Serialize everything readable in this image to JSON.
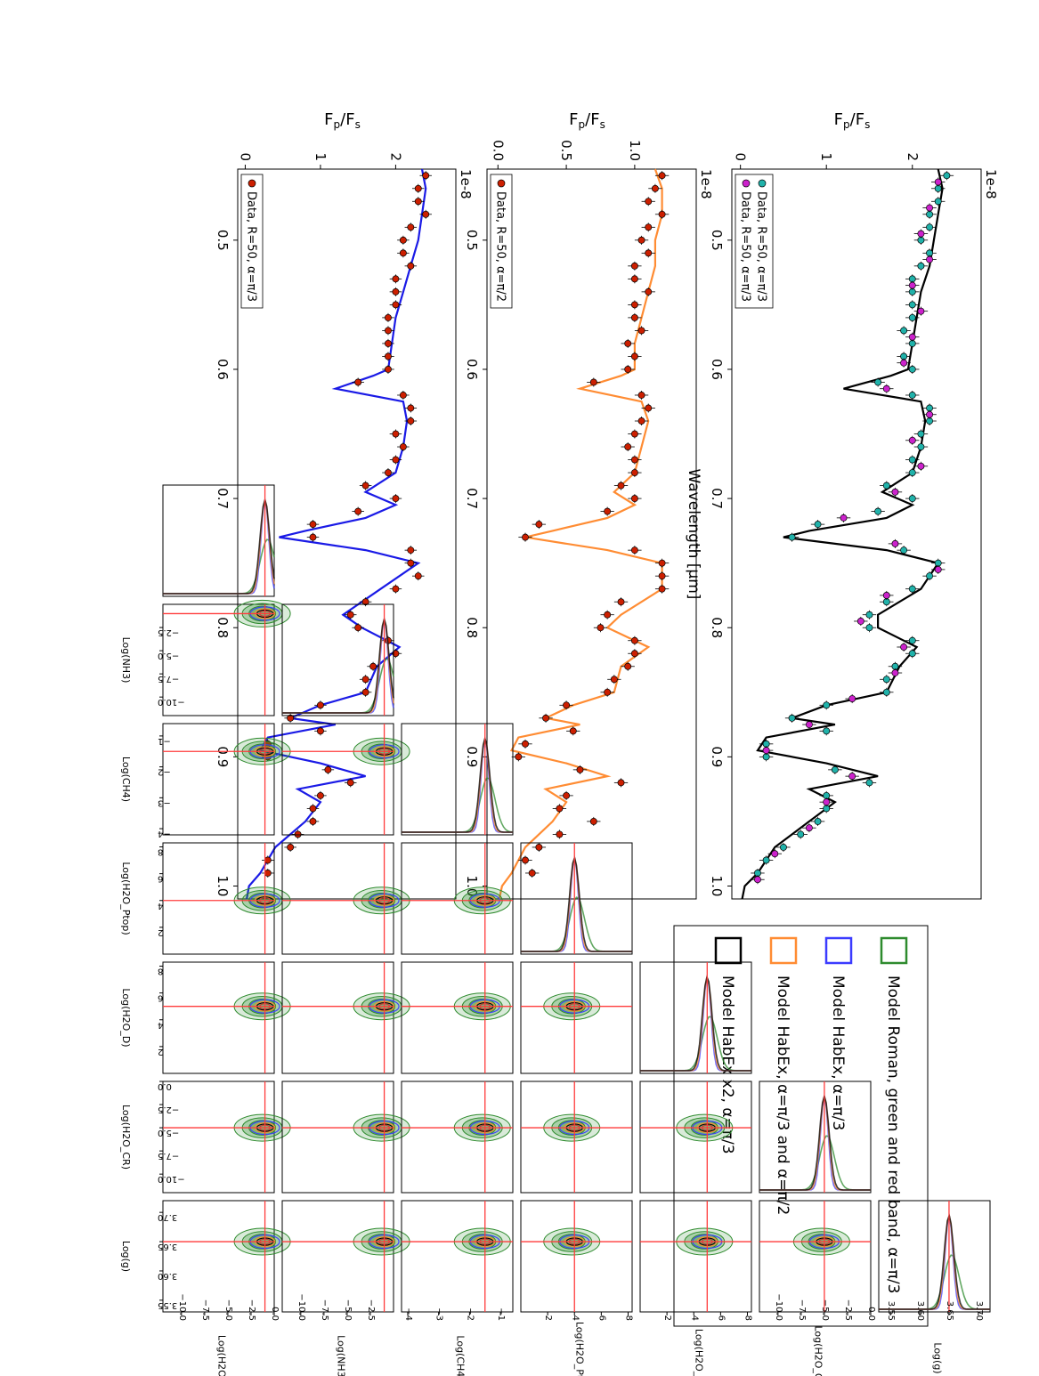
{
  "chart_data": [
    {
      "type": "line",
      "panel": "spectrum-top",
      "offset_text": "1e-8",
      "ylabel": "F_p/F_s",
      "ylim": [
        -0.1,
        2.8
      ],
      "xlim": [
        0.445,
        1.01
      ],
      "xticks": [
        "0.5",
        "0.6",
        "0.7",
        "0.8",
        "0.9",
        "1.0"
      ],
      "yticks": [
        "0",
        "1",
        "2"
      ],
      "legend": [
        {
          "label": "Data, R=50, α=π/3",
          "color": "#cc1f00"
        }
      ],
      "model": {
        "color": "#1a1ae6",
        "x": [
          0.445,
          0.46,
          0.48,
          0.5,
          0.52,
          0.54,
          0.56,
          0.58,
          0.6,
          0.605,
          0.615,
          0.625,
          0.64,
          0.66,
          0.68,
          0.695,
          0.705,
          0.715,
          0.725,
          0.73,
          0.74,
          0.75,
          0.77,
          0.79,
          0.8,
          0.815,
          0.83,
          0.85,
          0.86,
          0.87,
          0.875,
          0.885,
          0.895,
          0.905,
          0.915,
          0.925,
          0.935,
          0.95,
          0.97,
          0.99,
          1.0,
          1.01
        ],
        "y": [
          2.35,
          2.4,
          2.35,
          2.3,
          2.2,
          2.1,
          2.0,
          1.95,
          1.9,
          1.7,
          1.2,
          2.1,
          2.15,
          2.1,
          2.0,
          1.6,
          2.0,
          1.6,
          0.8,
          0.45,
          1.6,
          2.3,
          1.8,
          1.3,
          1.55,
          2.05,
          1.75,
          1.6,
          1.0,
          0.6,
          1.2,
          0.3,
          0.2,
          1.0,
          1.6,
          0.7,
          1.0,
          0.8,
          0.4,
          0.2,
          0.05,
          0.02
        ]
      },
      "data": {
        "color": "#cc1f00",
        "yerr": 0.08,
        "x": [
          0.45,
          0.46,
          0.47,
          0.48,
          0.49,
          0.5,
          0.51,
          0.52,
          0.53,
          0.54,
          0.55,
          0.56,
          0.57,
          0.58,
          0.59,
          0.6,
          0.61,
          0.62,
          0.63,
          0.64,
          0.65,
          0.66,
          0.67,
          0.68,
          0.69,
          0.7,
          0.71,
          0.72,
          0.73,
          0.74,
          0.75,
          0.76,
          0.77,
          0.78,
          0.79,
          0.8,
          0.81,
          0.82,
          0.83,
          0.84,
          0.85,
          0.86,
          0.87,
          0.88,
          0.89,
          0.9,
          0.91,
          0.92,
          0.93,
          0.94,
          0.95,
          0.96,
          0.97,
          0.98,
          0.99
        ],
        "y": [
          2.4,
          2.3,
          2.3,
          2.4,
          2.2,
          2.1,
          2.1,
          2.2,
          2.0,
          2.0,
          2.0,
          1.9,
          1.9,
          1.9,
          1.9,
          1.9,
          1.5,
          2.1,
          2.2,
          2.2,
          2.0,
          2.1,
          2.0,
          1.9,
          1.6,
          2.0,
          1.5,
          0.9,
          0.9,
          2.2,
          2.2,
          2.3,
          2.0,
          1.6,
          1.4,
          1.5,
          1.9,
          2.0,
          1.7,
          1.6,
          1.6,
          1.0,
          0.6,
          1.0,
          0.3,
          0.3,
          1.1,
          1.4,
          1.0,
          0.9,
          0.9,
          0.7,
          0.6,
          0.3,
          0.3
        ]
      }
    },
    {
      "type": "line",
      "panel": "spectrum-middle",
      "offset_text": "1e-8",
      "ylabel": "F_p/F_s",
      "ylim": [
        -0.08,
        1.45
      ],
      "xlim": [
        0.445,
        1.01
      ],
      "xticks": [
        "0.5",
        "0.6",
        "0.7",
        "0.8",
        "0.9",
        "1.0"
      ],
      "yticks": [
        "0.0",
        "0.5",
        "1.0"
      ],
      "legend": [
        {
          "label": "Data, R=50, α=π/2",
          "color": "#cc1f00"
        }
      ],
      "model": {
        "color": "#ff8c33",
        "x": [
          0.445,
          0.46,
          0.48,
          0.5,
          0.52,
          0.54,
          0.56,
          0.58,
          0.6,
          0.605,
          0.615,
          0.625,
          0.64,
          0.66,
          0.68,
          0.695,
          0.705,
          0.715,
          0.725,
          0.73,
          0.74,
          0.75,
          0.77,
          0.79,
          0.8,
          0.815,
          0.83,
          0.85,
          0.86,
          0.87,
          0.875,
          0.885,
          0.895,
          0.905,
          0.915,
          0.925,
          0.935,
          0.95,
          0.97,
          0.99,
          1.0,
          1.01
        ],
        "y": [
          1.15,
          1.2,
          1.2,
          1.15,
          1.15,
          1.1,
          1.05,
          1.0,
          1.0,
          0.9,
          0.6,
          1.05,
          1.1,
          1.05,
          1.0,
          0.85,
          1.0,
          0.8,
          0.4,
          0.2,
          0.8,
          1.2,
          1.2,
          0.9,
          0.8,
          1.1,
          0.9,
          0.85,
          0.55,
          0.35,
          0.6,
          0.15,
          0.1,
          0.5,
          0.8,
          0.35,
          0.5,
          0.4,
          0.2,
          0.1,
          0.03,
          0.01
        ]
      },
      "data": {
        "color": "#cc1f00",
        "yerr": 0.05,
        "x": [
          0.45,
          0.46,
          0.47,
          0.48,
          0.49,
          0.5,
          0.51,
          0.52,
          0.53,
          0.54,
          0.55,
          0.56,
          0.57,
          0.58,
          0.59,
          0.6,
          0.61,
          0.62,
          0.63,
          0.64,
          0.65,
          0.66,
          0.67,
          0.68,
          0.69,
          0.7,
          0.71,
          0.72,
          0.73,
          0.74,
          0.75,
          0.76,
          0.77,
          0.78,
          0.79,
          0.8,
          0.81,
          0.82,
          0.83,
          0.84,
          0.85,
          0.86,
          0.87,
          0.88,
          0.89,
          0.9,
          0.91,
          0.92,
          0.93,
          0.94,
          0.95,
          0.96,
          0.97,
          0.98,
          0.99
        ],
        "y": [
          1.2,
          1.15,
          1.1,
          1.2,
          1.1,
          1.05,
          1.1,
          1.0,
          1.0,
          1.1,
          1.0,
          1.0,
          1.05,
          0.95,
          1.0,
          0.95,
          0.7,
          1.05,
          1.1,
          1.05,
          1.0,
          0.95,
          1.0,
          1.0,
          0.9,
          1.0,
          0.8,
          0.3,
          0.2,
          1.0,
          1.2,
          1.2,
          1.2,
          0.9,
          0.8,
          0.75,
          1.0,
          1.0,
          0.95,
          0.85,
          0.8,
          0.5,
          0.35,
          0.55,
          0.2,
          0.15,
          0.6,
          0.9,
          0.5,
          0.45,
          0.7,
          0.45,
          0.3,
          0.2,
          0.25
        ]
      }
    },
    {
      "type": "line",
      "panel": "spectrum-bottom",
      "offset_text": "1e-8",
      "ylabel": "F_p/F_s",
      "xlabel": "Wavelength [μm]",
      "ylim": [
        -0.1,
        2.8
      ],
      "xlim": [
        0.445,
        1.01
      ],
      "xticks": [
        "0.5",
        "0.6",
        "0.7",
        "0.8",
        "0.9",
        "1.0"
      ],
      "yticks": [
        "0",
        "1",
        "2"
      ],
      "legend": [
        {
          "label": "Data, R=50, α=π/3",
          "color": "#20b2aa"
        },
        {
          "label": "Data, R=50, α=π/3",
          "color": "#cc22cc"
        }
      ],
      "model": {
        "color": "#000000",
        "x": [
          0.445,
          0.46,
          0.48,
          0.5,
          0.52,
          0.54,
          0.56,
          0.58,
          0.6,
          0.605,
          0.615,
          0.625,
          0.64,
          0.66,
          0.68,
          0.695,
          0.705,
          0.715,
          0.725,
          0.73,
          0.74,
          0.75,
          0.77,
          0.79,
          0.8,
          0.815,
          0.83,
          0.85,
          0.86,
          0.87,
          0.875,
          0.885,
          0.895,
          0.905,
          0.915,
          0.925,
          0.935,
          0.95,
          0.97,
          0.99,
          1.0,
          1.01
        ],
        "y": [
          2.3,
          2.35,
          2.3,
          2.25,
          2.2,
          2.1,
          2.05,
          2.0,
          1.95,
          1.75,
          1.2,
          2.1,
          2.15,
          2.1,
          2.0,
          1.65,
          2.0,
          1.7,
          0.8,
          0.5,
          1.7,
          2.3,
          2.1,
          1.6,
          1.6,
          2.05,
          1.85,
          1.7,
          1.0,
          0.6,
          1.1,
          0.3,
          0.2,
          1.0,
          1.6,
          0.8,
          1.1,
          0.8,
          0.4,
          0.2,
          0.05,
          0.02
        ]
      },
      "data": {
        "color": "#20b2aa",
        "yerr": 0.08,
        "x": [
          0.45,
          0.46,
          0.47,
          0.48,
          0.49,
          0.5,
          0.51,
          0.52,
          0.53,
          0.54,
          0.55,
          0.56,
          0.57,
          0.58,
          0.59,
          0.6,
          0.61,
          0.62,
          0.63,
          0.64,
          0.65,
          0.66,
          0.67,
          0.68,
          0.69,
          0.7,
          0.71,
          0.72,
          0.73,
          0.74,
          0.75,
          0.76,
          0.77,
          0.78,
          0.79,
          0.8,
          0.81,
          0.82,
          0.83,
          0.84,
          0.85,
          0.86,
          0.87,
          0.88,
          0.89,
          0.9,
          0.91,
          0.92,
          0.93,
          0.94,
          0.95,
          0.96,
          0.97,
          0.98,
          0.99
        ],
        "y": [
          2.4,
          2.3,
          2.3,
          2.2,
          2.2,
          2.1,
          2.2,
          2.1,
          2.0,
          2.0,
          2.0,
          2.0,
          1.9,
          2.0,
          1.9,
          2.0,
          1.6,
          2.0,
          2.2,
          2.2,
          2.1,
          2.1,
          2.0,
          2.0,
          1.7,
          2.0,
          1.6,
          0.9,
          0.6,
          1.9,
          2.3,
          2.2,
          2.0,
          1.7,
          1.5,
          1.5,
          2.0,
          2.0,
          1.8,
          1.7,
          1.7,
          1.0,
          0.6,
          1.0,
          0.3,
          0.3,
          1.1,
          1.5,
          1.0,
          1.0,
          0.9,
          0.7,
          0.5,
          0.3,
          0.2
        ]
      },
      "data2": {
        "color": "#cc22cc",
        "yerr": 0.08,
        "x": [
          0.455,
          0.475,
          0.495,
          0.515,
          0.535,
          0.555,
          0.575,
          0.595,
          0.615,
          0.635,
          0.655,
          0.675,
          0.695,
          0.715,
          0.735,
          0.755,
          0.775,
          0.795,
          0.815,
          0.835,
          0.855,
          0.875,
          0.895,
          0.915,
          0.935,
          0.955,
          0.975,
          0.995
        ],
        "y": [
          2.3,
          2.2,
          2.1,
          2.2,
          2.0,
          2.1,
          2.0,
          1.9,
          1.7,
          2.2,
          2.0,
          2.1,
          1.8,
          1.2,
          1.8,
          2.3,
          1.7,
          1.4,
          1.9,
          1.8,
          1.3,
          0.8,
          0.3,
          1.3,
          1.0,
          0.8,
          0.4,
          0.2
        ]
      }
    },
    {
      "type": "scatter",
      "panel": "corner-plot",
      "parameters": [
        "Log(H2O)",
        "Log(NH3)",
        "Log(CH4)",
        "Log(H2O_Ptop)",
        "Log(H2O_D)",
        "Log(H2O_CR)",
        "Log(g)"
      ],
      "truth": [
        -1.0,
        -1.0,
        -1.5,
        4.0,
        5.0,
        -5.0,
        3.65
      ],
      "ranges": [
        [
          -12,
          0
        ],
        [
          -12,
          0
        ],
        [
          -4.2,
          -0.6
        ],
        [
          0,
          8.3
        ],
        [
          0,
          8.3
        ],
        [
          -12,
          0
        ],
        [
          3.53,
          3.72
        ]
      ],
      "ticks": {
        "Log(H2O)": [
          "−10.0",
          "−7.5",
          "−5.0",
          "−2.5",
          "0.0"
        ],
        "Log(NH3)": [
          "−10.0",
          "−7.5",
          "−5.0",
          "−2.5"
        ],
        "Log(CH4)": [
          "−4",
          "−3",
          "−2",
          "−1"
        ],
        "Log(H2O_Ptop)": [
          "2",
          "4",
          "6",
          "8"
        ],
        "Log(H2O_D)": [
          "2",
          "4",
          "6",
          "8"
        ],
        "Log(H2O_CR)": [
          "−10.0",
          "−7.5",
          "−5.0",
          "−2.5",
          "0.0"
        ],
        "Log(g)": [
          "3.55",
          "3.60",
          "3.65",
          "3.70"
        ]
      },
      "truth_color": "#ff3b3b"
    }
  ],
  "legend": {
    "items": [
      {
        "label": "Model Roman, green and red band, α=π/3",
        "color": "#2e8b2e"
      },
      {
        "label": "Model HabEx, α=π/3",
        "color": "#3b3bff"
      },
      {
        "label": "Model HabEx, α=π/3 and α=π/2",
        "color": "#ff8c33"
      },
      {
        "label": "Model HabEx x2, α=π/3",
        "color": "#000000"
      }
    ]
  }
}
